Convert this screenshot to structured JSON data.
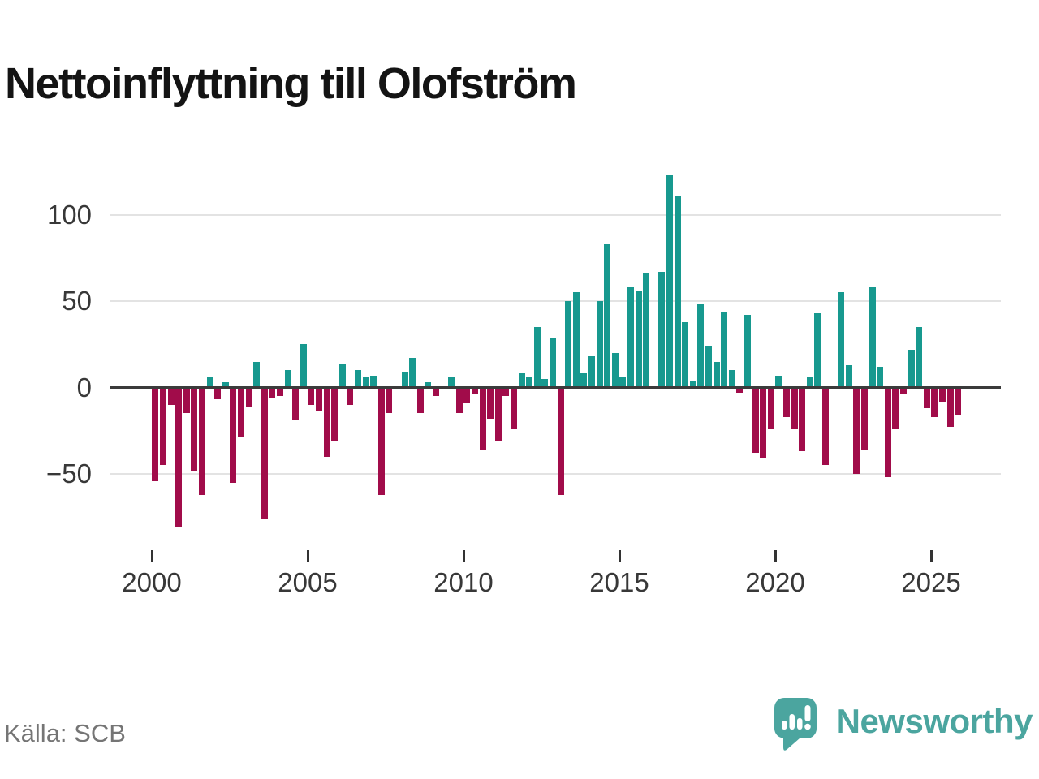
{
  "title": "Nettoinflyttning till Olofström",
  "source": "Källa: SCB",
  "logo": {
    "text": "Newsworthy"
  },
  "chart_data": {
    "type": "bar",
    "title": "Nettoinflyttning till Olofström",
    "subtitle": "",
    "xlabel": "",
    "ylabel": "",
    "unit": "persons per quarter (net migration)",
    "grid": true,
    "legend": "none",
    "ylim": [
      -86,
      131
    ],
    "positive_color": "#17998f",
    "negative_color": "#a10c4a",
    "y_ticks": [
      {
        "value": 100,
        "label": "100"
      },
      {
        "value": 50,
        "label": "50"
      },
      {
        "value": 0,
        "label": "0"
      },
      {
        "value": -50,
        "label": "−50"
      }
    ],
    "x_ticks": [
      {
        "year": 2000,
        "label": "2000"
      },
      {
        "year": 2005,
        "label": "2005"
      },
      {
        "year": 2010,
        "label": "2010"
      },
      {
        "year": 2015,
        "label": "2015"
      },
      {
        "year": 2020,
        "label": "2020"
      },
      {
        "year": 2025,
        "label": "2025"
      }
    ],
    "quarterly_values": [
      {
        "year": 2000,
        "values": [
          -54,
          -45,
          -10,
          -81
        ]
      },
      {
        "year": 2001,
        "values": [
          -15,
          -48,
          -62,
          6
        ]
      },
      {
        "year": 2002,
        "values": [
          -7,
          3,
          -55,
          -29
        ]
      },
      {
        "year": 2003,
        "values": [
          -11,
          15,
          -76,
          -6
        ]
      },
      {
        "year": 2004,
        "values": [
          -5,
          10,
          -19,
          25
        ]
      },
      {
        "year": 2005,
        "values": [
          -10,
          -14,
          -40,
          -31
        ]
      },
      {
        "year": 2006,
        "values": [
          14,
          -10,
          10,
          6
        ]
      },
      {
        "year": 2007,
        "values": [
          7,
          -62,
          -15,
          0
        ]
      },
      {
        "year": 2008,
        "values": [
          9,
          17,
          -15,
          3
        ]
      },
      {
        "year": 2009,
        "values": [
          -5,
          0,
          6,
          -15
        ]
      },
      {
        "year": 2010,
        "values": [
          -9,
          -4,
          -36,
          -18
        ]
      },
      {
        "year": 2011,
        "values": [
          -31,
          -5,
          -24,
          8
        ]
      },
      {
        "year": 2012,
        "values": [
          6,
          35,
          5,
          29
        ]
      },
      {
        "year": 2013,
        "values": [
          -62,
          50,
          55,
          8
        ]
      },
      {
        "year": 2014,
        "values": [
          18,
          50,
          83,
          20
        ]
      },
      {
        "year": 2015,
        "values": [
          6,
          58,
          56,
          66
        ]
      },
      {
        "year": 2016,
        "values": [
          0,
          67,
          123,
          111
        ]
      },
      {
        "year": 2017,
        "values": [
          38,
          4,
          48,
          24
        ]
      },
      {
        "year": 2018,
        "values": [
          15,
          44,
          10,
          -3
        ]
      },
      {
        "year": 2019,
        "values": [
          42,
          -38,
          -41,
          -24
        ]
      },
      {
        "year": 2020,
        "values": [
          7,
          -17,
          -24,
          -37
        ]
      },
      {
        "year": 2021,
        "values": [
          6,
          43,
          -45,
          0
        ]
      },
      {
        "year": 2022,
        "values": [
          55,
          13,
          -50,
          -36
        ]
      },
      {
        "year": 2023,
        "values": [
          58,
          12,
          -52,
          -24
        ]
      },
      {
        "year": 2024,
        "values": [
          -4,
          22,
          35,
          -12
        ]
      },
      {
        "year": 2025,
        "values": [
          -17,
          -8,
          -23,
          -16
        ]
      }
    ]
  }
}
